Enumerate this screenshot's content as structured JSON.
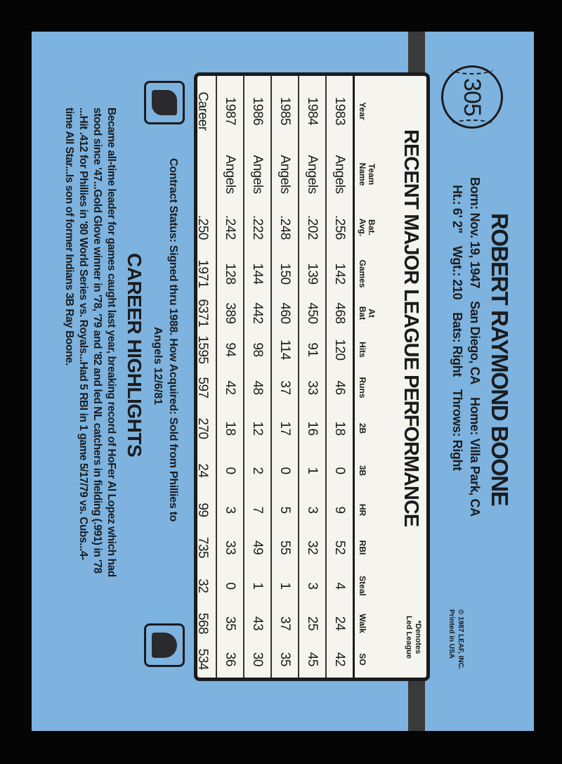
{
  "card_number": "305",
  "player": {
    "name": "ROBERT RAYMOND BOONE",
    "born": "Born: Nov. 19, 1947",
    "birthplace": "San Diego, CA",
    "home": "Home: Villa Park, CA",
    "height": "Ht.: 6' 2\"",
    "weight": "Wgt.: 210",
    "bats": "Bats: Right",
    "throws": "Throws: Right"
  },
  "copyright": {
    "line1": "© 1987 LEAF, INC.",
    "line2": "Printed in USA"
  },
  "stats": {
    "title": "RECENT MAJOR LEAGUE PERFORMANCE",
    "note_line1": "*Denotes",
    "note_line2": "Led League",
    "headers": [
      [
        "",
        "Year"
      ],
      [
        "Team",
        "Name"
      ],
      [
        "Bat.",
        "Avg."
      ],
      [
        "",
        "Games"
      ],
      [
        "At",
        "Bat"
      ],
      [
        "",
        "Hits"
      ],
      [
        "",
        "Runs"
      ],
      [
        "",
        "2B"
      ],
      [
        "",
        "3B"
      ],
      [
        "",
        "HR"
      ],
      [
        "",
        "RBI"
      ],
      [
        "",
        "Steal"
      ],
      [
        "",
        "Walk"
      ],
      [
        "",
        "SO"
      ]
    ],
    "rows": [
      [
        "1983",
        "Angels",
        ".256",
        "142",
        "468",
        "120",
        "46",
        "18",
        "0",
        "9",
        "52",
        "4",
        "24",
        "42"
      ],
      [
        "1984",
        "Angels",
        ".202",
        "139",
        "450",
        "91",
        "33",
        "16",
        "1",
        "3",
        "32",
        "3",
        "25",
        "45"
      ],
      [
        "1985",
        "Angels",
        ".248",
        "150",
        "460",
        "114",
        "37",
        "17",
        "0",
        "5",
        "55",
        "1",
        "37",
        "35"
      ],
      [
        "1986",
        "Angels",
        ".222",
        "144",
        "442",
        "98",
        "48",
        "12",
        "2",
        "7",
        "49",
        "1",
        "43",
        "30"
      ],
      [
        "1987",
        "Angels",
        ".242",
        "128",
        "389",
        "94",
        "42",
        "18",
        "0",
        "3",
        "33",
        "0",
        "35",
        "36"
      ],
      [
        "Career",
        "",
        ".250",
        "1971",
        "6371",
        "1595",
        "597",
        "270",
        "24",
        "99",
        "735",
        "32",
        "568",
        "534"
      ]
    ]
  },
  "contract": {
    "line1": "Contract Status: Signed thru 1988. How Acquired: Sold from Phillies to",
    "line2": "Angels 12/6/81"
  },
  "highlights": {
    "title": "CAREER HIGHLIGHTS",
    "lines": [
      "Became all-time leader for games caught last year, breaking record of HoFer Al Lopez which had",
      "stood since '47...Gold Glove winner in '78, '79 and '82 and led NL catchers in fielding (.991) in '78",
      "...Hit .412 for Phillies in '80 World Series vs. Royals...Had 5 RBI in 1 game 5/17/79 vs. Cubs...4-",
      "time All Star...Is son of former Indians 3B Ray Boone."
    ]
  },
  "logos": {
    "left": "players-association-logo",
    "right": "mlb-logo"
  },
  "colors": {
    "card": "#7db3de",
    "panel": "#f6f4ee",
    "ink": "#1b1b1e"
  }
}
